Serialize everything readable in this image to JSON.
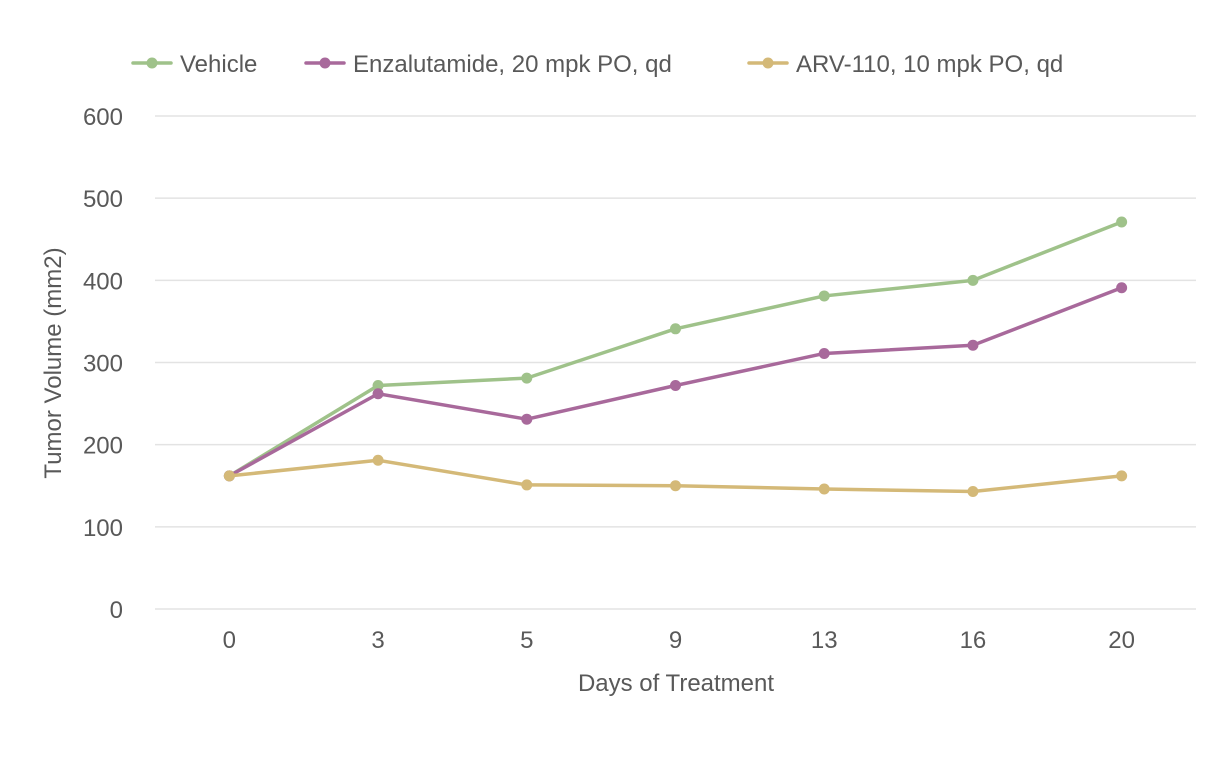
{
  "chart_data": {
    "type": "line",
    "title": "",
    "xlabel": "Days of Treatment",
    "ylabel": "Tumor Volume (mm2)",
    "categories": [
      "0",
      "3",
      "5",
      "9",
      "13",
      "16",
      "20"
    ],
    "ylim": [
      0,
      600
    ],
    "yticks": [
      0,
      100,
      200,
      300,
      400,
      500,
      600
    ],
    "grid": true,
    "legend_position": "top",
    "series": [
      {
        "name": "Vehicle",
        "color": "#9fc28a",
        "values": [
          162,
          272,
          281,
          341,
          381,
          400,
          471
        ]
      },
      {
        "name": "Enzalutamide, 20 mpk PO, qd",
        "color": "#a8699b",
        "values": [
          162,
          262,
          231,
          272,
          311,
          321,
          391
        ]
      },
      {
        "name": "ARV-110, 10 mpk PO, qd",
        "color": "#d4b978",
        "values": [
          162,
          181,
          151,
          150,
          146,
          143,
          162
        ]
      }
    ]
  }
}
